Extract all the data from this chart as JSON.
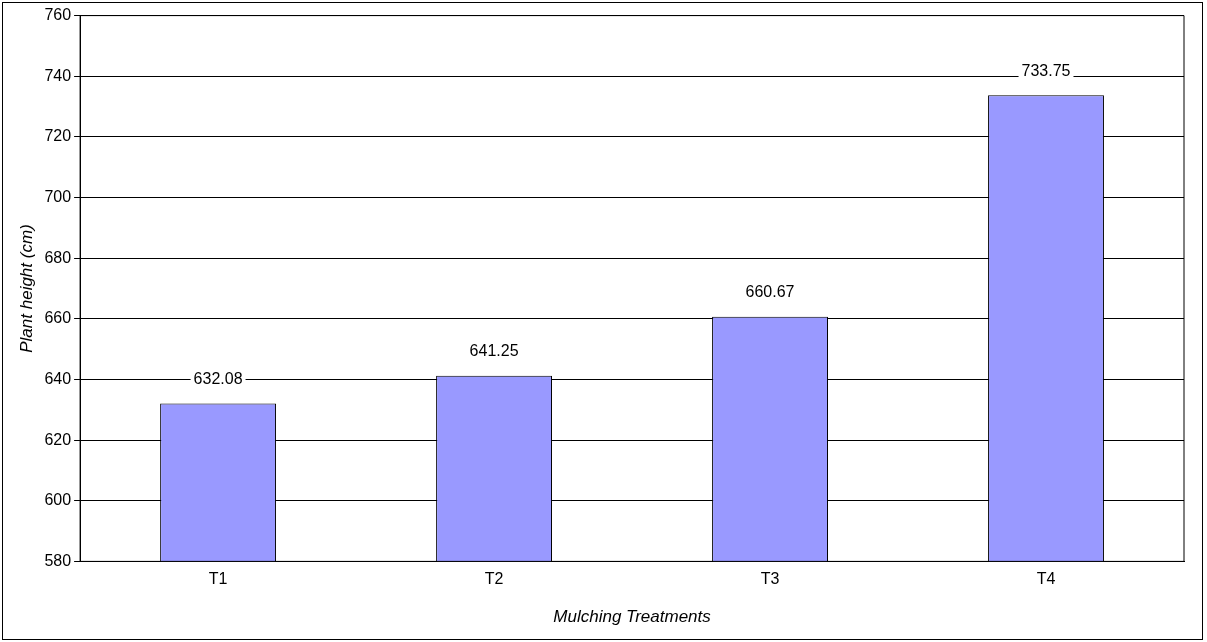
{
  "chart_data": {
    "type": "bar",
    "xlabel": "Mulching Treatments",
    "ylabel": "Plant height (cm)",
    "categories": [
      "T1",
      "T2",
      "T3",
      "T4"
    ],
    "values": [
      632.08,
      641.25,
      660.67,
      733.75
    ],
    "color": "#9999ff",
    "ylim": [
      580,
      760
    ],
    "yticks": [
      580,
      600,
      620,
      640,
      660,
      680,
      700,
      720,
      740,
      760
    ],
    "grid": "y",
    "data_labels": true,
    "legend": false
  }
}
